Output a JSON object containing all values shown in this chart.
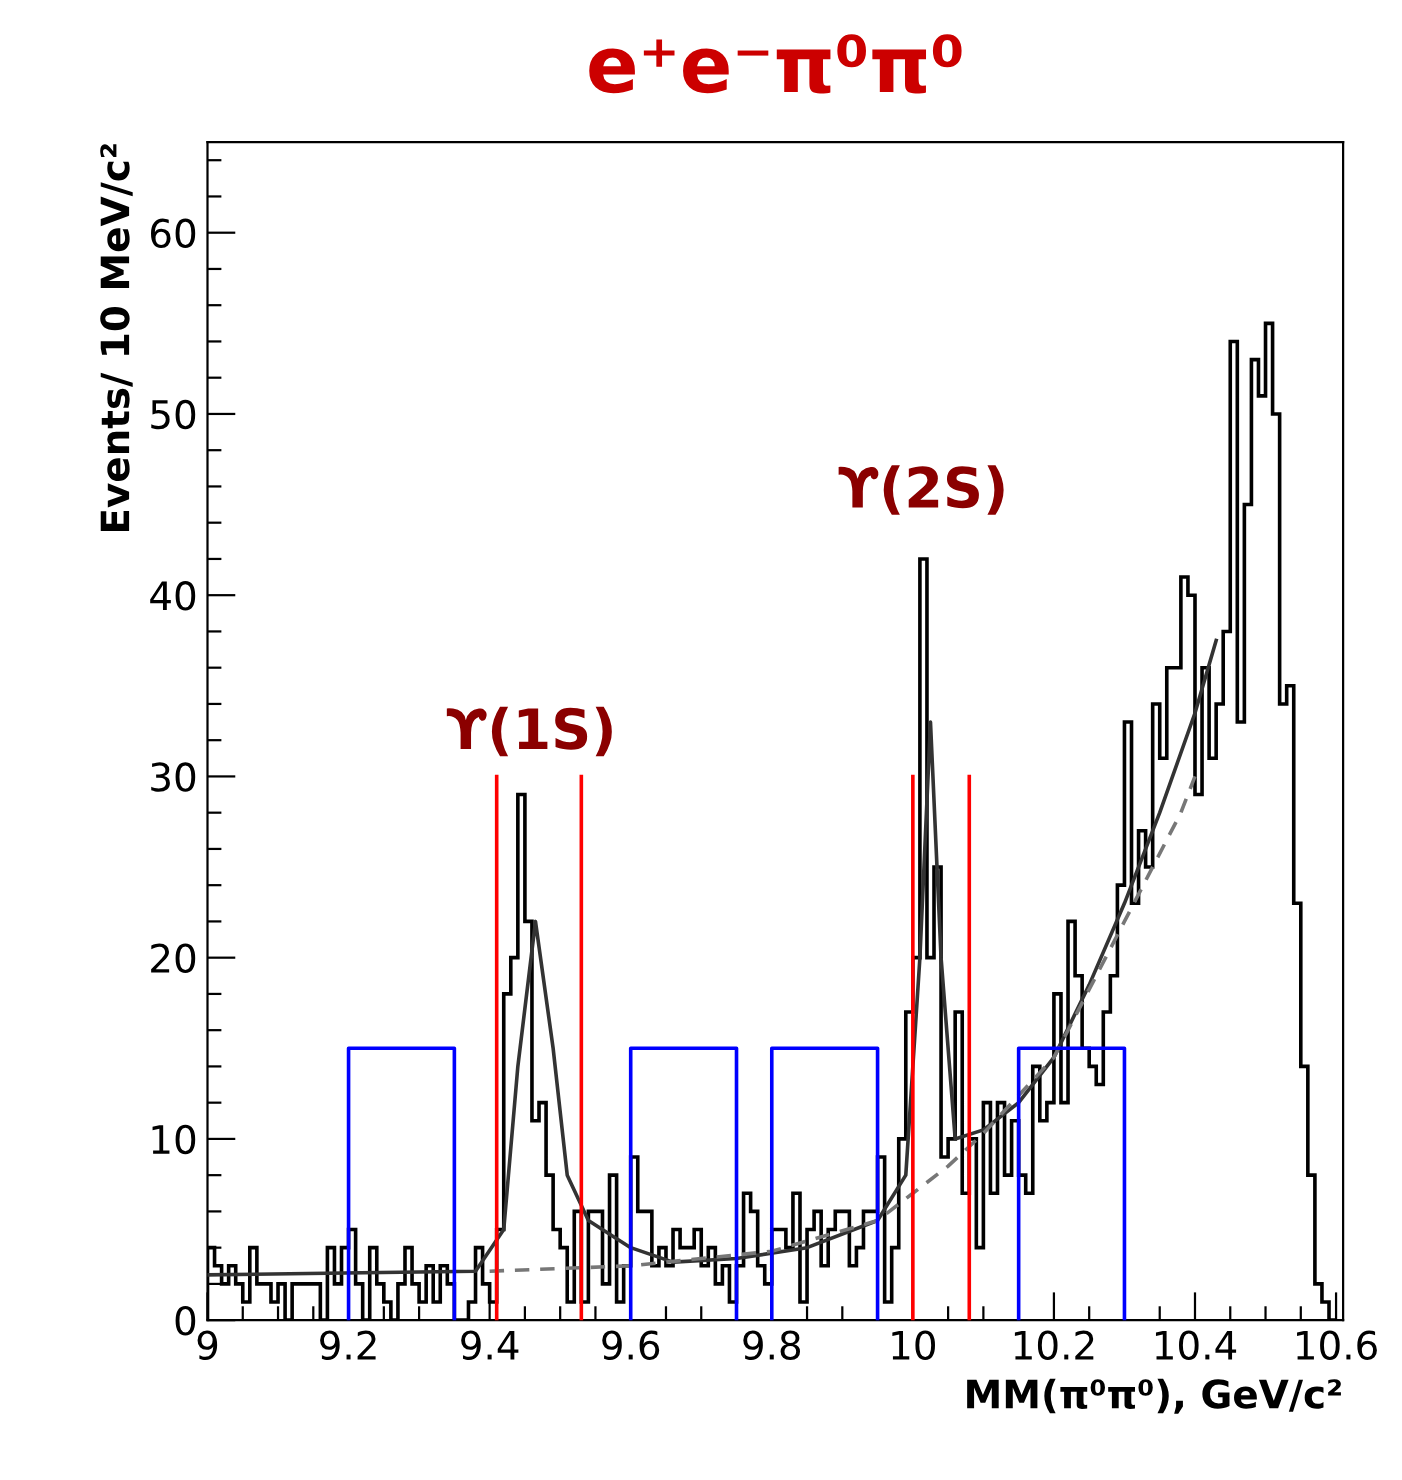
{
  "chart_data": {
    "type": "histogram",
    "title": "e⁺e⁻π⁰π⁰",
    "xlabel": "MM(π⁰π⁰), GeV/c²",
    "ylabel": "Events/ 10 MeV/c²",
    "bins": [
      9.0,
      9.01,
      9.02,
      9.03,
      9.04,
      9.05,
      9.06,
      9.07,
      9.08,
      9.09,
      9.1,
      9.11,
      9.12,
      9.13,
      9.14,
      9.15,
      9.16,
      9.17,
      9.18,
      9.19,
      9.2,
      9.21,
      9.22,
      9.23,
      9.24,
      9.25,
      9.26,
      9.27,
      9.28,
      9.29,
      9.3,
      9.31,
      9.32,
      9.33,
      9.34,
      9.35,
      9.36,
      9.37,
      9.38,
      9.39,
      9.4,
      9.41,
      9.42,
      9.43,
      9.44,
      9.45,
      9.46,
      9.47,
      9.48,
      9.49,
      9.5,
      9.51,
      9.52,
      9.53,
      9.54,
      9.55,
      9.56,
      9.57,
      9.58,
      9.59,
      9.6,
      9.61,
      9.62,
      9.63,
      9.64,
      9.65,
      9.66,
      9.67,
      9.68,
      9.69,
      9.7,
      9.71,
      9.72,
      9.73,
      9.74,
      9.75,
      9.76,
      9.77,
      9.78,
      9.79,
      9.8,
      9.81,
      9.82,
      9.83,
      9.84,
      9.85,
      9.86,
      9.87,
      9.88,
      9.89,
      9.9,
      9.91,
      9.92,
      9.93,
      9.94,
      9.95,
      9.96,
      9.97,
      9.98,
      9.99,
      10.0,
      10.01,
      10.02,
      10.03,
      10.04,
      10.05,
      10.06,
      10.07,
      10.08,
      10.09,
      10.1,
      10.11,
      10.12,
      10.13,
      10.14,
      10.15,
      10.16,
      10.17,
      10.18,
      10.19,
      10.2,
      10.21,
      10.22,
      10.23,
      10.24,
      10.25,
      10.26,
      10.27,
      10.28,
      10.29,
      10.3,
      10.31,
      10.32,
      10.33,
      10.34,
      10.35,
      10.36,
      10.37,
      10.38,
      10.39,
      10.4,
      10.41,
      10.42,
      10.43,
      10.44,
      10.45,
      10.46,
      10.47,
      10.48,
      10.49,
      10.5,
      10.51,
      10.52,
      10.53,
      10.54,
      10.55,
      10.56,
      10.57,
      10.58,
      10.59,
      10.6
    ],
    "values": [
      4,
      3,
      2,
      3,
      2,
      1,
      4,
      2,
      2,
      1,
      2,
      0,
      2,
      2,
      2,
      2,
      0,
      4,
      2,
      4,
      5,
      2,
      0,
      4,
      2,
      1,
      0,
      2,
      4,
      2,
      1,
      3,
      1,
      3,
      2,
      0,
      0,
      1,
      4,
      2,
      1,
      5,
      18,
      20,
      29,
      22,
      11,
      12,
      8,
      5,
      4,
      1,
      6,
      1,
      6,
      6,
      2,
      8,
      1,
      3,
      9,
      6,
      6,
      3,
      4,
      3,
      5,
      4,
      4,
      5,
      3,
      4,
      2,
      3,
      1,
      3,
      7,
      6,
      3,
      2,
      5,
      5,
      4,
      7,
      1,
      5,
      6,
      3,
      5,
      6,
      6,
      3,
      4,
      6,
      6,
      9,
      1,
      4,
      10,
      17,
      20,
      42,
      20,
      25,
      9,
      10,
      17,
      7,
      10,
      4,
      12,
      7,
      12,
      8,
      11,
      8,
      7,
      14,
      11,
      12,
      18,
      12,
      22,
      19,
      15,
      14,
      13,
      17,
      19,
      24,
      33,
      23,
      27,
      25,
      34,
      31,
      36,
      36,
      41,
      40,
      29,
      36,
      31,
      34,
      38,
      54,
      33,
      45,
      53,
      51,
      55,
      50,
      34,
      35,
      23,
      14,
      8,
      2,
      1,
      0
    ],
    "color": "#000000",
    "series": [
      {
        "type": "line",
        "color": "#333333",
        "line_style": "solid",
        "x": [
          9.0,
          9.38,
          9.42,
          9.44,
          9.465,
          9.49,
          9.51,
          9.54,
          9.6,
          9.66,
          9.75,
          9.85,
          9.95,
          9.99,
          10.01,
          10.025,
          10.04,
          10.06,
          10.1,
          10.15,
          10.2,
          10.25,
          10.3,
          10.35,
          10.4,
          10.43
        ],
        "values": [
          2.5,
          2.7,
          5,
          14,
          22,
          15,
          8,
          5.5,
          4,
          3.2,
          3.4,
          4,
          5.5,
          8,
          20,
          33,
          20,
          10,
          10.5,
          12,
          14.5,
          18.5,
          23,
          28,
          33.5,
          37.5
        ]
      },
      {
        "type": "line",
        "color": "#777777",
        "line_style": "dashed",
        "x": [
          9.4,
          9.6,
          9.8,
          9.95,
          10.0,
          10.05,
          10.1,
          10.2,
          10.3,
          10.38,
          10.4
        ],
        "values": [
          2.7,
          3.0,
          3.8,
          5.5,
          7,
          8.5,
          10.3,
          14.5,
          22,
          28,
          30
        ]
      },
      {
        "type": "line",
        "color": "#ff0000",
        "line_style": "solid",
        "x": [
          9.41,
          9.41,
          null,
          9.53,
          9.53,
          null,
          10.0,
          10.0,
          null,
          10.08,
          10.08
        ],
        "values": [
          0,
          30,
          null,
          0,
          30,
          null,
          0,
          30,
          null,
          0,
          30
        ]
      },
      {
        "type": "line",
        "color": "#0000ff",
        "line_style": "solid",
        "x": [
          9.2,
          9.2,
          9.35,
          9.35,
          null,
          9.6,
          9.6,
          9.75,
          9.75,
          null,
          9.8,
          9.8,
          9.95,
          9.95,
          null,
          10.15,
          10.15,
          10.3,
          10.3
        ],
        "values": [
          0,
          15,
          15,
          0,
          null,
          0,
          15,
          15,
          0,
          null,
          0,
          15,
          15,
          0,
          null,
          0,
          15,
          15,
          0
        ]
      }
    ],
    "annotations": [
      "ϒ(1S)",
      "ϒ(2S)"
    ],
    "xlim": [
      9.0,
      10.61
    ],
    "xticks": [
      9,
      {
        "value": 9.05,
        "label": null
      },
      {
        "value": 9.1,
        "label": null
      },
      {
        "value": 9.15,
        "label": null
      },
      9.2,
      {
        "value": 9.25,
        "label": null
      },
      {
        "value": 9.3,
        "label": null
      },
      {
        "value": 9.35,
        "label": null
      },
      9.4,
      {
        "value": 9.45,
        "label": null
      },
      {
        "value": 9.5,
        "label": null
      },
      {
        "value": 9.55,
        "label": null
      },
      9.6,
      {
        "value": 9.65,
        "label": null
      },
      {
        "value": 9.7,
        "label": null
      },
      {
        "value": 9.75,
        "label": null
      },
      9.8,
      {
        "value": 9.85,
        "label": null
      },
      {
        "value": 9.9,
        "label": null
      },
      {
        "value": 9.95,
        "label": null
      },
      10,
      {
        "value": 10.05,
        "label": null
      },
      {
        "value": 10.1,
        "label": null
      },
      {
        "value": 10.15,
        "label": null
      },
      10.2,
      {
        "value": 10.25,
        "label": null
      },
      {
        "value": 10.3,
        "label": null
      },
      {
        "value": 10.35,
        "label": null
      },
      10.4,
      {
        "value": 10.45,
        "label": null
      },
      {
        "value": 10.5,
        "label": null
      },
      {
        "value": 10.55,
        "label": null
      },
      10.6
    ],
    "ylim": [
      0,
      65
    ],
    "yticks": [
      0,
      {
        "value": 2,
        "label": null
      },
      {
        "value": 4,
        "label": null
      },
      {
        "value": 6,
        "label": null
      },
      {
        "value": 8,
        "label": null
      },
      10,
      {
        "value": 12,
        "label": null
      },
      {
        "value": 14,
        "label": null
      },
      {
        "value": 16,
        "label": null
      },
      {
        "value": 18,
        "label": null
      },
      20,
      {
        "value": 22,
        "label": null
      },
      {
        "value": 24,
        "label": null
      },
      {
        "value": 26,
        "label": null
      },
      {
        "value": 28,
        "label": null
      },
      30,
      {
        "value": 32,
        "label": null
      },
      {
        "value": 34,
        "label": null
      },
      {
        "value": 36,
        "label": null
      },
      {
        "value": 38,
        "label": null
      },
      40,
      {
        "value": 42,
        "label": null
      },
      {
        "value": 44,
        "label": null
      },
      {
        "value": 46,
        "label": null
      },
      {
        "value": 48,
        "label": null
      },
      50,
      {
        "value": 52,
        "label": null
      },
      {
        "value": 54,
        "label": null
      },
      {
        "value": 56,
        "label": null
      },
      {
        "value": 58,
        "label": null
      },
      60,
      {
        "value": 62,
        "label": null
      },
      {
        "value": 64,
        "label": null
      }
    ],
    "grid": false,
    "legend": false
  }
}
